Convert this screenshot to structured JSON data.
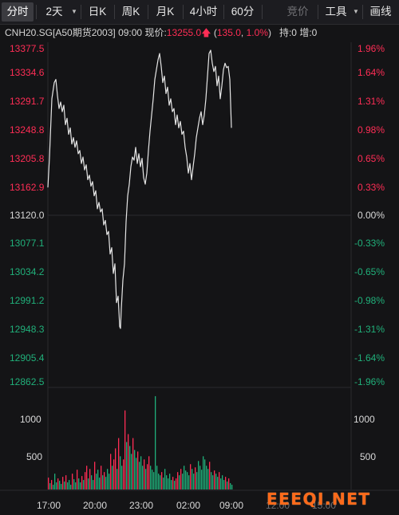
{
  "toolbar": {
    "tabs": [
      {
        "label": "分时",
        "active": true
      },
      {
        "label": "2天",
        "has_dropdown": true
      },
      {
        "label": "日K"
      },
      {
        "label": "周K"
      },
      {
        "label": "月K"
      },
      {
        "label": "4小时"
      },
      {
        "label": "60分"
      }
    ],
    "bidding_label": "竞价",
    "tools_label": "工具",
    "draw_label": "画线"
  },
  "info": {
    "symbol": "CNH20.SG[A50期货2003]",
    "time": "09:00",
    "price_label": "现价:",
    "price": "13255.0",
    "change": "135.0",
    "change_pct": "1.0%",
    "position_label": "持:0",
    "increase_label": "增:0"
  },
  "colors": {
    "up": "#ff2d55",
    "down": "#20b07a",
    "line": "#e6e6e6",
    "bg": "#141416"
  },
  "chart_data": {
    "type": "line",
    "y_ticks_price": [
      "13377.5",
      "13334.6",
      "13291.7",
      "13248.8",
      "13205.8",
      "13162.9",
      "13120.0",
      "13077.1",
      "13034.2",
      "12991.2",
      "12948.3",
      "12905.4",
      "12862.5"
    ],
    "y_ticks_pct": [
      "1.96%",
      "1.64%",
      "1.31%",
      "0.98%",
      "0.65%",
      "0.33%",
      "0.00%",
      "-0.33%",
      "-0.65%",
      "-0.98%",
      "-1.31%",
      "-1.64%",
      "-1.96%"
    ],
    "ylim": [
      12862.5,
      13377.5
    ],
    "base_price": 13120.0,
    "x_ticks": [
      "17:00",
      "20:00",
      "23:00",
      "02:00",
      "09:00",
      "12:00",
      "15:00"
    ],
    "volume_ticks": [
      "1000",
      "500"
    ],
    "volume_ylim": [
      0,
      1250
    ],
    "price_series": [
      [
        0,
        13163
      ],
      [
        2,
        13210
      ],
      [
        5,
        13300
      ],
      [
        8,
        13325
      ],
      [
        10,
        13330
      ],
      [
        12,
        13305
      ],
      [
        14,
        13285
      ],
      [
        16,
        13295
      ],
      [
        18,
        13280
      ],
      [
        20,
        13290
      ],
      [
        22,
        13260
      ],
      [
        24,
        13270
      ],
      [
        26,
        13245
      ],
      [
        28,
        13255
      ],
      [
        30,
        13230
      ],
      [
        32,
        13240
      ],
      [
        34,
        13225
      ],
      [
        36,
        13235
      ],
      [
        38,
        13215
      ],
      [
        40,
        13220
      ],
      [
        42,
        13200
      ],
      [
        44,
        13210
      ],
      [
        46,
        13190
      ],
      [
        48,
        13198
      ],
      [
        50,
        13175
      ],
      [
        52,
        13182
      ],
      [
        54,
        13165
      ],
      [
        56,
        13172
      ],
      [
        58,
        13150
      ],
      [
        60,
        13158
      ],
      [
        62,
        13130
      ],
      [
        64,
        13140
      ],
      [
        66,
        13125
      ],
      [
        68,
        13130
      ],
      [
        70,
        13105
      ],
      [
        72,
        13112
      ],
      [
        74,
        13090
      ],
      [
        76,
        13095
      ],
      [
        78,
        13060
      ],
      [
        80,
        13070
      ],
      [
        82,
        13030
      ],
      [
        84,
        13045
      ],
      [
        86,
        12985
      ],
      [
        88,
        12995
      ],
      [
        90,
        12948
      ],
      [
        91,
        12945
      ],
      [
        92,
        12975
      ],
      [
        94,
        13020
      ],
      [
        96,
        13045
      ],
      [
        98,
        13110
      ],
      [
        100,
        13150
      ],
      [
        102,
        13168
      ],
      [
        104,
        13195
      ],
      [
        106,
        13210
      ],
      [
        108,
        13205
      ],
      [
        110,
        13225
      ],
      [
        112,
        13200
      ],
      [
        114,
        13215
      ],
      [
        116,
        13195
      ],
      [
        118,
        13208
      ],
      [
        120,
        13178
      ],
      [
        122,
        13168
      ],
      [
        124,
        13185
      ],
      [
        126,
        13220
      ],
      [
        128,
        13250
      ],
      [
        130,
        13275
      ],
      [
        132,
        13300
      ],
      [
        134,
        13330
      ],
      [
        136,
        13345
      ],
      [
        138,
        13360
      ],
      [
        140,
        13370
      ],
      [
        142,
        13350
      ],
      [
        144,
        13325
      ],
      [
        146,
        13335
      ],
      [
        148,
        13308
      ],
      [
        150,
        13318
      ],
      [
        152,
        13290
      ],
      [
        154,
        13300
      ],
      [
        156,
        13280
      ],
      [
        158,
        13285
      ],
      [
        160,
        13260
      ],
      [
        162,
        13275
      ],
      [
        164,
        13255
      ],
      [
        166,
        13265
      ],
      [
        168,
        13245
      ],
      [
        170,
        13250
      ],
      [
        172,
        13225
      ],
      [
        174,
        13210
      ],
      [
        176,
        13185
      ],
      [
        178,
        13200
      ],
      [
        180,
        13175
      ],
      [
        182,
        13195
      ],
      [
        184,
        13215
      ],
      [
        186,
        13240
      ],
      [
        188,
        13255
      ],
      [
        190,
        13270
      ],
      [
        192,
        13280
      ],
      [
        194,
        13260
      ],
      [
        196,
        13275
      ],
      [
        198,
        13300
      ],
      [
        200,
        13335
      ],
      [
        202,
        13370
      ],
      [
        204,
        13375
      ],
      [
        206,
        13355
      ],
      [
        208,
        13342
      ],
      [
        210,
        13350
      ],
      [
        212,
        13320
      ],
      [
        214,
        13335
      ],
      [
        216,
        13300
      ],
      [
        218,
        13320
      ],
      [
        220,
        13345
      ],
      [
        222,
        13355
      ],
      [
        224,
        13348
      ],
      [
        226,
        13350
      ],
      [
        228,
        13330
      ],
      [
        230,
        13255
      ]
    ],
    "volume_series": [
      [
        0,
        150
      ],
      [
        2,
        80
      ],
      [
        4,
        120
      ],
      [
        6,
        60
      ],
      [
        8,
        200
      ],
      [
        10,
        90
      ],
      [
        12,
        140
      ],
      [
        14,
        110
      ],
      [
        16,
        70
      ],
      [
        18,
        160
      ],
      [
        20,
        100
      ],
      [
        22,
        180
      ],
      [
        24,
        90
      ],
      [
        26,
        120
      ],
      [
        28,
        60
      ],
      [
        30,
        200
      ],
      [
        32,
        130
      ],
      [
        34,
        90
      ],
      [
        36,
        250
      ],
      [
        38,
        140
      ],
      [
        40,
        90
      ],
      [
        42,
        170
      ],
      [
        44,
        120
      ],
      [
        46,
        220
      ],
      [
        48,
        300
      ],
      [
        50,
        140
      ],
      [
        52,
        260
      ],
      [
        54,
        180
      ],
      [
        56,
        120
      ],
      [
        58,
        350
      ],
      [
        60,
        200
      ],
      [
        62,
        250
      ],
      [
        64,
        150
      ],
      [
        66,
        300
      ],
      [
        68,
        180
      ],
      [
        70,
        220
      ],
      [
        72,
        160
      ],
      [
        74,
        260
      ],
      [
        76,
        200
      ],
      [
        78,
        450
      ],
      [
        80,
        300
      ],
      [
        82,
        380
      ],
      [
        84,
        520
      ],
      [
        86,
        260
      ],
      [
        88,
        650
      ],
      [
        90,
        420
      ],
      [
        92,
        300
      ],
      [
        94,
        380
      ],
      [
        96,
        1000
      ],
      [
        98,
        600
      ],
      [
        100,
        700
      ],
      [
        102,
        550
      ],
      [
        104,
        450
      ],
      [
        106,
        650
      ],
      [
        108,
        500
      ],
      [
        110,
        400
      ],
      [
        112,
        480
      ],
      [
        114,
        350
      ],
      [
        116,
        420
      ],
      [
        118,
        300
      ],
      [
        120,
        380
      ],
      [
        122,
        260
      ],
      [
        124,
        320
      ],
      [
        126,
        420
      ],
      [
        128,
        300
      ],
      [
        130,
        250
      ],
      [
        132,
        220
      ],
      [
        134,
        1180
      ],
      [
        136,
        300
      ],
      [
        138,
        200
      ],
      [
        140,
        180
      ],
      [
        142,
        220
      ],
      [
        144,
        150
      ],
      [
        146,
        260
      ],
      [
        148,
        180
      ],
      [
        150,
        140
      ],
      [
        152,
        200
      ],
      [
        154,
        120
      ],
      [
        156,
        160
      ],
      [
        158,
        110
      ],
      [
        160,
        140
      ],
      [
        162,
        220
      ],
      [
        164,
        180
      ],
      [
        166,
        260
      ],
      [
        168,
        200
      ],
      [
        170,
        300
      ],
      [
        172,
        240
      ],
      [
        174,
        220
      ],
      [
        176,
        180
      ],
      [
        178,
        320
      ],
      [
        180,
        260
      ],
      [
        182,
        200
      ],
      [
        184,
        280
      ],
      [
        186,
        220
      ],
      [
        188,
        360
      ],
      [
        190,
        300
      ],
      [
        192,
        250
      ],
      [
        194,
        420
      ],
      [
        196,
        380
      ],
      [
        198,
        300
      ],
      [
        200,
        260
      ],
      [
        202,
        350
      ],
      [
        204,
        220
      ],
      [
        206,
        180
      ],
      [
        208,
        240
      ],
      [
        210,
        200
      ],
      [
        212,
        160
      ],
      [
        214,
        220
      ],
      [
        216,
        140
      ],
      [
        218,
        180
      ],
      [
        220,
        120
      ],
      [
        222,
        160
      ],
      [
        224,
        100
      ],
      [
        226,
        140
      ],
      [
        228,
        80
      ],
      [
        230,
        60
      ]
    ]
  },
  "watermark": "EEEQI.NET"
}
